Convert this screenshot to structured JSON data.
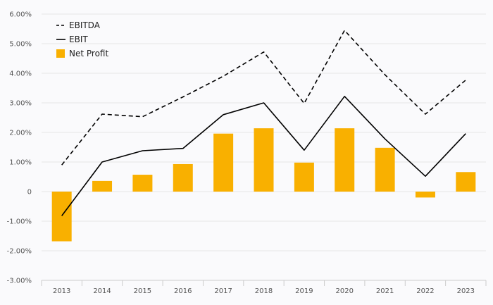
{
  "chart_data": {
    "type": "bar",
    "categories": [
      "2013",
      "2014",
      "2015",
      "2016",
      "2017",
      "2018",
      "2019",
      "2020",
      "2021",
      "2022",
      "2023"
    ],
    "series": [
      {
        "name": "EBITDA",
        "type": "line",
        "style": "dashed",
        "color": "#000000",
        "values": [
          0.9,
          2.62,
          2.53,
          3.2,
          3.9,
          4.72,
          2.98,
          5.45,
          3.95,
          2.62,
          3.77
        ]
      },
      {
        "name": "EBIT",
        "type": "line",
        "style": "solid",
        "color": "#000000",
        "values": [
          -0.82,
          1.0,
          1.38,
          1.46,
          2.6,
          3.0,
          1.4,
          3.22,
          1.78,
          0.52,
          1.96
        ]
      },
      {
        "name": "Net Profit",
        "type": "bar",
        "color": "#f9b000",
        "values": [
          -1.68,
          0.36,
          0.57,
          0.93,
          1.96,
          2.14,
          0.98,
          2.14,
          1.48,
          -0.2,
          0.66
        ]
      }
    ],
    "yticks": [
      -3,
      -2,
      -1,
      0,
      1,
      2,
      3,
      4,
      5,
      6
    ],
    "ytick_labels": [
      "-3.00%",
      "-2.00%",
      "-1.00%",
      "0",
      "1.00%",
      "2.00%",
      "3.00%",
      "4.00%",
      "5.00%",
      "6.00%"
    ],
    "ylim": [
      -3,
      6
    ],
    "title": "",
    "xlabel": "",
    "ylabel": "",
    "legend": {
      "placement": "top-left",
      "entries": [
        "EBITDA",
        "EBIT",
        "Net Profit"
      ]
    },
    "grid": true
  }
}
